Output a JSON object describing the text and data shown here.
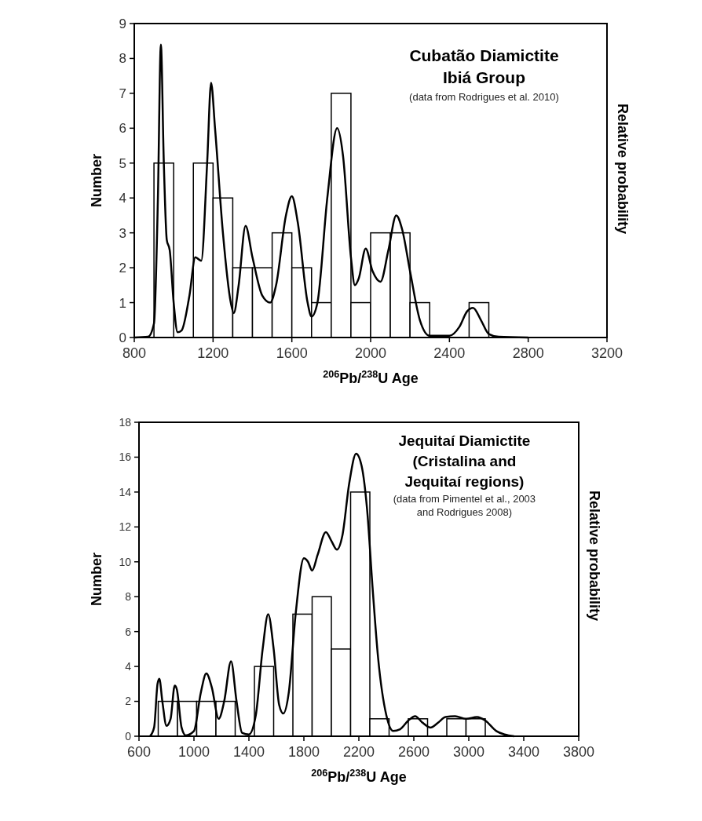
{
  "chart_data": [
    {
      "type": "histogram",
      "title": "Cubatão Diamictite\nIbiá Group",
      "subtitle": "(data from Rodrigues et al. 2010)",
      "xlabel": "$^{206}$Pb/$^{238}$U Age",
      "ylabel": "Number",
      "y2label": "Relative probability",
      "bins": [
        900,
        1000,
        1100,
        1200,
        1300,
        1400,
        1500,
        1600,
        1700,
        1800,
        1900,
        2000,
        2100,
        2200,
        2300,
        2400,
        2500,
        2600
      ],
      "values": [
        5,
        0,
        5,
        4,
        2,
        2,
        3,
        2,
        1,
        7,
        1,
        3,
        3,
        1,
        0,
        0,
        1
      ],
      "color": "#ffffff",
      "xlim": [
        800,
        3200
      ],
      "xticks": [
        800,
        1200,
        1600,
        2000,
        2400,
        2800,
        3200
      ],
      "ylim": [
        0,
        9
      ],
      "yticks": [
        0,
        1,
        2,
        3,
        4,
        5,
        6,
        7,
        8,
        9
      ],
      "series": [
        {
          "type": "line",
          "color": "#000000",
          "x": [
            800,
            870,
            900,
            920,
            935,
            950,
            965,
            980,
            1000,
            1020,
            1040,
            1080,
            1110,
            1140,
            1170,
            1190,
            1210,
            1250,
            1290,
            1305,
            1330,
            1365,
            1400,
            1450,
            1490,
            1520,
            1570,
            1600,
            1630,
            1680,
            1700,
            1730,
            1780,
            1830,
            1860,
            1900,
            1920,
            1940,
            1975,
            2010,
            2050,
            2090,
            2130,
            2160,
            2200,
            2250,
            2300,
            2400,
            2450,
            2490,
            2520,
            2560,
            2600,
            2650,
            2800
          ],
          "values": [
            0,
            0.02,
            0.4,
            4,
            8.4,
            5,
            2.8,
            2.5,
            1,
            0.15,
            0.2,
            1.2,
            2.3,
            2.2,
            5,
            7.3,
            6,
            3,
            1,
            0.7,
            1.5,
            3.2,
            2.3,
            1.2,
            1,
            1.5,
            3.5,
            4.05,
            3.3,
            1,
            0.6,
            1,
            4,
            6,
            5.2,
            2.3,
            1.5,
            1.7,
            2.55,
            1.9,
            1.6,
            2.5,
            3.5,
            3.1,
            1.9,
            0.5,
            0.05,
            0.05,
            0.3,
            0.75,
            0.85,
            0.5,
            0.1,
            0.02,
            0
          ]
        }
      ]
    },
    {
      "type": "histogram",
      "title": "Jequitaí Diamictite\n(Cristalina and\nJequitaí regions)",
      "subtitle": "(data from Pimentel et al., 2003\nand Rodrigues 2008)",
      "xlabel": "$^{206}$Pb/$^{238}$U Age",
      "ylabel": "Number",
      "y2label": "Relative probability",
      "bins": [
        740,
        880,
        1020,
        1160,
        1300,
        1440,
        1580,
        1720,
        1860,
        2000,
        2140,
        2280,
        2420,
        2560,
        2700,
        2840,
        2980,
        3120
      ],
      "values": [
        2,
        2,
        2,
        2,
        0,
        4,
        0,
        7,
        8,
        5,
        14,
        1,
        0,
        1,
        0,
        1,
        1
      ],
      "color": "#ffffff",
      "xlim": [
        600,
        3800
      ],
      "xticks": [
        600,
        1000,
        1400,
        1800,
        2200,
        2600,
        3000,
        3400,
        3800
      ],
      "ylim": [
        0,
        18
      ],
      "yticks": [
        0,
        2,
        4,
        6,
        8,
        10,
        12,
        14,
        16,
        18
      ],
      "series": [
        {
          "type": "line",
          "color": "#000000",
          "x": [
            680,
            710,
            735,
            748,
            770,
            800,
            830,
            860,
            875,
            910,
            940,
            1000,
            1050,
            1090,
            1130,
            1180,
            1220,
            1270,
            1310,
            1350,
            1400,
            1450,
            1500,
            1540,
            1580,
            1620,
            1650,
            1690,
            1740,
            1800,
            1830,
            1860,
            1900,
            1960,
            2000,
            2040,
            2080,
            2130,
            2180,
            2220,
            2260,
            2300,
            2340,
            2400,
            2450,
            2500,
            2560,
            2610,
            2660,
            2720,
            2780,
            2830,
            2900,
            2980,
            3060,
            3120,
            3200,
            3260,
            3330
          ],
          "values": [
            0,
            0.5,
            3,
            3.3,
            2,
            0.6,
            1,
            2.9,
            2.7,
            0.5,
            0.05,
            0.3,
            2.5,
            3.6,
            2.8,
            1,
            2,
            4.3,
            2,
            0.2,
            0.1,
            1.2,
            5,
            7,
            5,
            1.8,
            1.3,
            2.5,
            7,
            10.2,
            10,
            9.5,
            10.4,
            11.7,
            11.2,
            10.7,
            11.5,
            14.5,
            16.2,
            15.5,
            13,
            8.5,
            4.5,
            1.2,
            0.3,
            0.4,
            0.9,
            1.15,
            0.8,
            0.5,
            0.8,
            1.1,
            1.15,
            1,
            1.1,
            0.9,
            0.3,
            0.1,
            0
          ]
        }
      ]
    }
  ]
}
